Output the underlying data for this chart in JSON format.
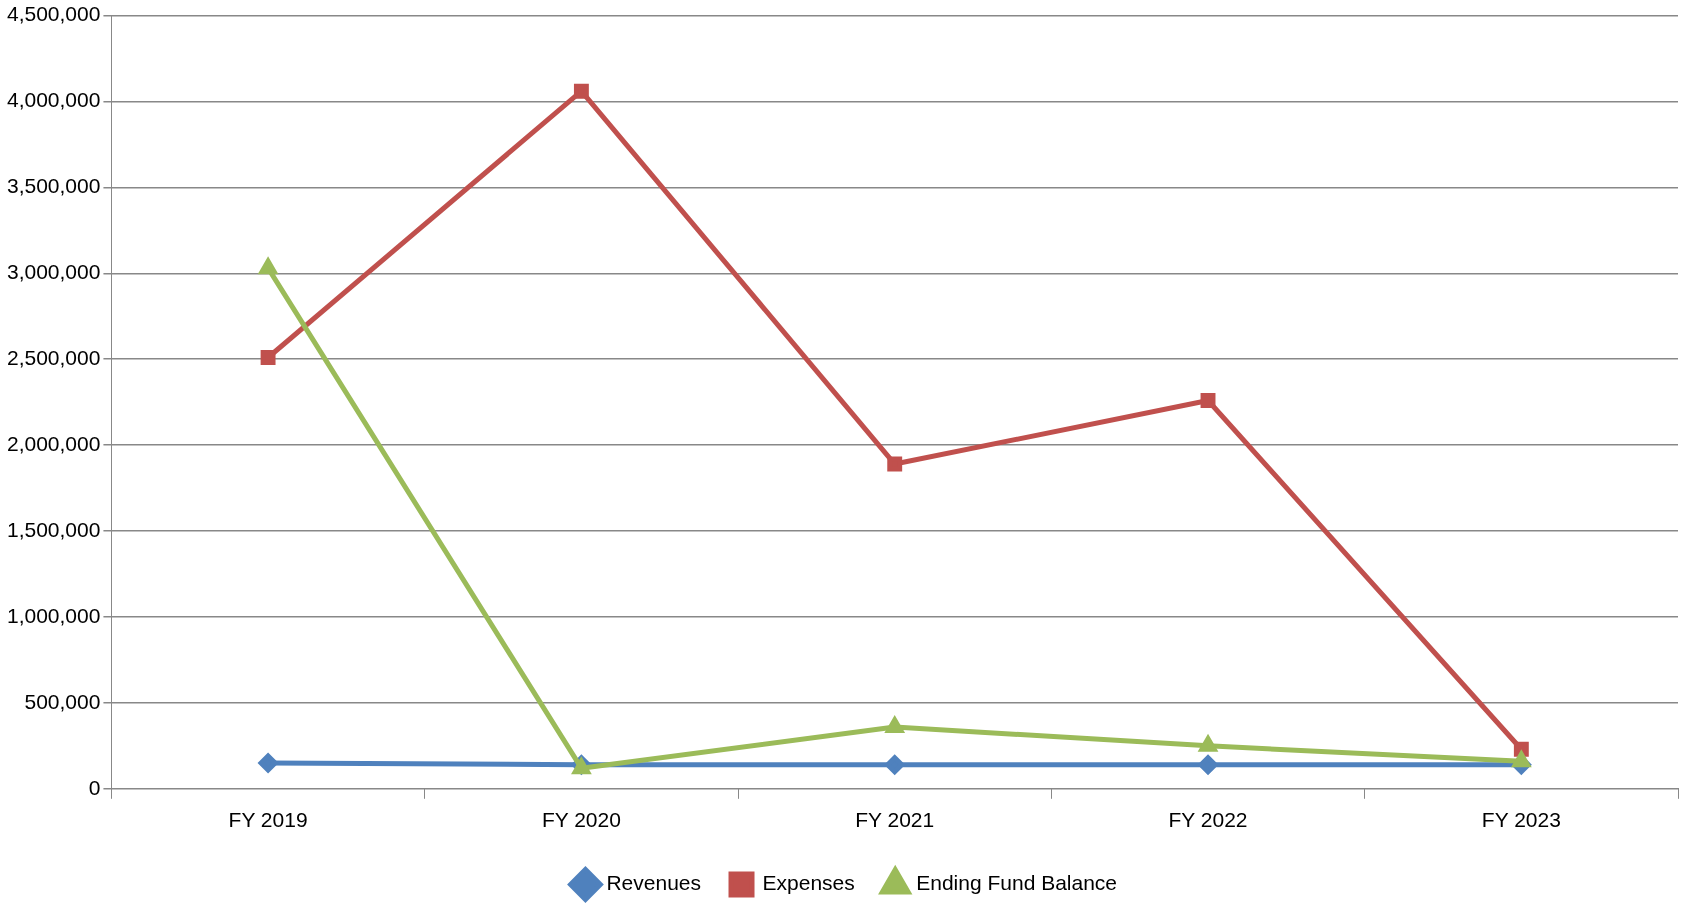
{
  "chart_data": {
    "type": "line",
    "categories": [
      "FY 2019",
      "FY 2020",
      "FY 2021",
      "FY 2022",
      "FY 2023"
    ],
    "series": [
      {
        "name": "Revenues",
        "color": "#4f81bd",
        "marker": "diamond",
        "values": [
          150000,
          140000,
          140000,
          140000,
          140000
        ]
      },
      {
        "name": "Expenses",
        "color": "#c0504d",
        "marker": "square",
        "values": [
          2510000,
          4060000,
          1890000,
          2260000,
          230000
        ]
      },
      {
        "name": "Ending Fund Balance",
        "color": "#9bbb59",
        "marker": "triangle",
        "values": [
          3030000,
          120000,
          360000,
          250000,
          160000
        ]
      }
    ],
    "ylim": [
      0,
      4500000
    ],
    "yticks": [
      0,
      {
        "value": 500000,
        "label": "500,000"
      },
      {
        "value": 1000000,
        "label": "1,000,000"
      },
      {
        "value": 1500000,
        "label": "1,500,000"
      },
      {
        "value": 2000000,
        "label": "2,000,000"
      },
      {
        "value": 2500000,
        "label": "2,500,000"
      },
      {
        "value": 3000000,
        "label": "3,000,000"
      },
      {
        "value": 3500000,
        "label": "3,500,000"
      },
      {
        "value": 4000000,
        "label": "4,000,000"
      },
      {
        "value": 4500000,
        "label": "4,500,000"
      }
    ],
    "grid": "y",
    "legend": "bottom",
    "line_style": "solid"
  }
}
